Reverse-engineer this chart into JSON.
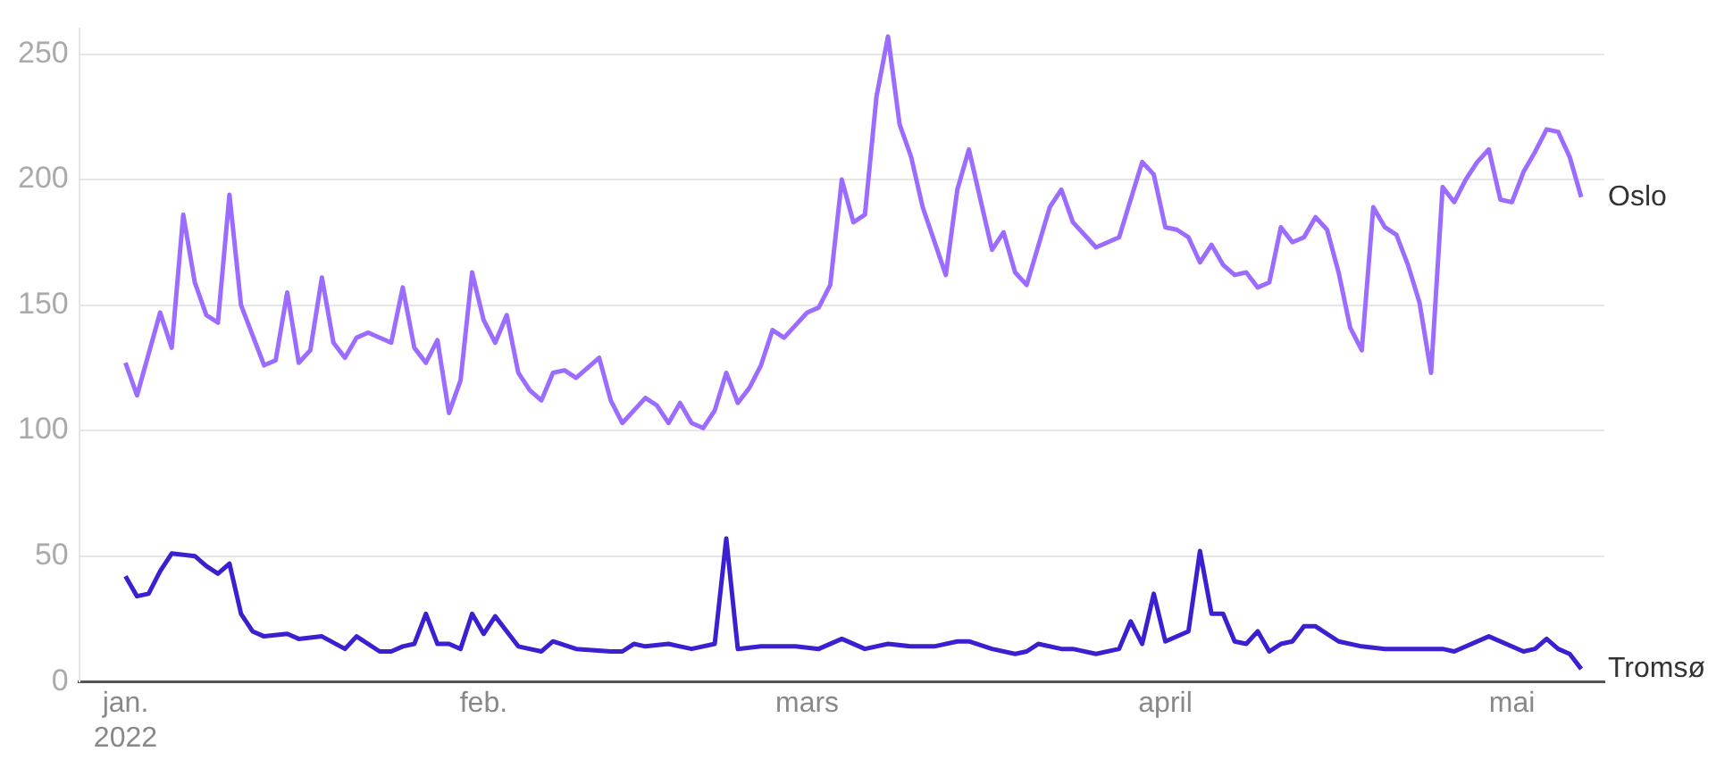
{
  "chart_data": {
    "type": "line",
    "xlim": [
      "2021-12-28",
      "2022-05-09"
    ],
    "xticks": [
      {
        "value": "2022-01-01",
        "label": "jan.\n2022"
      },
      {
        "value": "2022-02-01",
        "label": "feb."
      },
      {
        "value": "2022-03-01",
        "label": "mars"
      },
      {
        "value": "2022-04-01",
        "label": "april"
      },
      {
        "value": "2022-05-01",
        "label": "mai"
      }
    ],
    "ylim": [
      0,
      260
    ],
    "yticks": [
      0,
      50,
      100,
      150,
      200,
      250
    ],
    "grid": "y",
    "legend": false,
    "marker": "none",
    "line_style": "solid",
    "series": [
      {
        "name": "Oslo",
        "color": "#9b6cff",
        "x": [
          "2022-01-01",
          "2022-01-02",
          "2022-01-04",
          "2022-01-05",
          "2022-01-06",
          "2022-01-07",
          "2022-01-08",
          "2022-01-09",
          "2022-01-10",
          "2022-01-11",
          "2022-01-13",
          "2022-01-14",
          "2022-01-15",
          "2022-01-16",
          "2022-01-17",
          "2022-01-18",
          "2022-01-19",
          "2022-01-20",
          "2022-01-21",
          "2022-01-22",
          "2022-01-24",
          "2022-01-25",
          "2022-01-26",
          "2022-01-27",
          "2022-01-28",
          "2022-01-29",
          "2022-01-30",
          "2022-01-31",
          "2022-02-01",
          "2022-02-02",
          "2022-02-03",
          "2022-02-04",
          "2022-02-05",
          "2022-02-06",
          "2022-02-07",
          "2022-02-08",
          "2022-02-09",
          "2022-02-11",
          "2022-02-12",
          "2022-02-13",
          "2022-02-15",
          "2022-02-16",
          "2022-02-17",
          "2022-02-18",
          "2022-02-19",
          "2022-02-20",
          "2022-02-21",
          "2022-02-22",
          "2022-02-23",
          "2022-02-24",
          "2022-02-25",
          "2022-02-26",
          "2022-02-27",
          "2022-02-28",
          "2022-03-01",
          "2022-03-02",
          "2022-03-03",
          "2022-03-04",
          "2022-03-05",
          "2022-03-06",
          "2022-03-07",
          "2022-03-08",
          "2022-03-09",
          "2022-03-10",
          "2022-03-11",
          "2022-03-13",
          "2022-03-14",
          "2022-03-15",
          "2022-03-17",
          "2022-03-18",
          "2022-03-19",
          "2022-03-20",
          "2022-03-22",
          "2022-03-23",
          "2022-03-24",
          "2022-03-26",
          "2022-03-28",
          "2022-03-30",
          "2022-03-31",
          "2022-04-01",
          "2022-04-02",
          "2022-04-03",
          "2022-04-04",
          "2022-04-05",
          "2022-04-06",
          "2022-04-07",
          "2022-04-08",
          "2022-04-09",
          "2022-04-10",
          "2022-04-11",
          "2022-04-12",
          "2022-04-13",
          "2022-04-14",
          "2022-04-15",
          "2022-04-16",
          "2022-04-17",
          "2022-04-18",
          "2022-04-19",
          "2022-04-20",
          "2022-04-21",
          "2022-04-22",
          "2022-04-23",
          "2022-04-24",
          "2022-04-25",
          "2022-04-26",
          "2022-04-27",
          "2022-04-28",
          "2022-04-29",
          "2022-04-30",
          "2022-05-01",
          "2022-05-02",
          "2022-05-03",
          "2022-05-04",
          "2022-05-05",
          "2022-05-06",
          "2022-05-07"
        ],
        "values": [
          127,
          114,
          147,
          133,
          186,
          159,
          146,
          143,
          194,
          150,
          126,
          128,
          155,
          127,
          132,
          161,
          135,
          129,
          137,
          139,
          135,
          157,
          133,
          127,
          136,
          107,
          120,
          163,
          144,
          135,
          146,
          123,
          116,
          112,
          123,
          124,
          121,
          129,
          112,
          103,
          113,
          110,
          103,
          111,
          103,
          101,
          108,
          123,
          111,
          117,
          126,
          140,
          137,
          142,
          147,
          149,
          158,
          200,
          183,
          186,
          233,
          257,
          222,
          209,
          189,
          162,
          196,
          212,
          172,
          179,
          163,
          158,
          189,
          196,
          183,
          173,
          177,
          207,
          202,
          181,
          180,
          177,
          167,
          174,
          166,
          162,
          163,
          157,
          159,
          181,
          175,
          177,
          185,
          180,
          163,
          141,
          132,
          189,
          181,
          178,
          166,
          151,
          123,
          197,
          191,
          200,
          207,
          212,
          192,
          191,
          203,
          211,
          220,
          219,
          209,
          193
        ]
      },
      {
        "name": "Tromsø",
        "color": "#3d1fd1",
        "x": [
          "2022-01-01",
          "2022-01-02",
          "2022-01-03",
          "2022-01-04",
          "2022-01-05",
          "2022-01-07",
          "2022-01-08",
          "2022-01-09",
          "2022-01-10",
          "2022-01-11",
          "2022-01-12",
          "2022-01-13",
          "2022-01-15",
          "2022-01-16",
          "2022-01-18",
          "2022-01-20",
          "2022-01-21",
          "2022-01-23",
          "2022-01-24",
          "2022-01-25",
          "2022-01-26",
          "2022-01-27",
          "2022-01-28",
          "2022-01-29",
          "2022-01-30",
          "2022-01-31",
          "2022-02-01",
          "2022-02-02",
          "2022-02-03",
          "2022-02-04",
          "2022-02-06",
          "2022-02-07",
          "2022-02-09",
          "2022-02-12",
          "2022-02-13",
          "2022-02-14",
          "2022-02-15",
          "2022-02-17",
          "2022-02-19",
          "2022-02-21",
          "2022-02-22",
          "2022-02-23",
          "2022-02-25",
          "2022-02-28",
          "2022-03-02",
          "2022-03-04",
          "2022-03-06",
          "2022-03-08",
          "2022-03-10",
          "2022-03-12",
          "2022-03-14",
          "2022-03-15",
          "2022-03-17",
          "2022-03-19",
          "2022-03-20",
          "2022-03-21",
          "2022-03-23",
          "2022-03-24",
          "2022-03-26",
          "2022-03-28",
          "2022-03-29",
          "2022-03-30",
          "2022-03-31",
          "2022-04-01",
          "2022-04-03",
          "2022-04-04",
          "2022-04-05",
          "2022-04-06",
          "2022-04-07",
          "2022-04-08",
          "2022-04-09",
          "2022-04-10",
          "2022-04-11",
          "2022-04-12",
          "2022-04-13",
          "2022-04-14",
          "2022-04-16",
          "2022-04-18",
          "2022-04-20",
          "2022-04-25",
          "2022-04-26",
          "2022-04-29",
          "2022-05-02",
          "2022-05-03",
          "2022-05-04",
          "2022-05-05",
          "2022-05-06",
          "2022-05-07"
        ],
        "values": [
          42,
          34,
          35,
          44,
          51,
          50,
          46,
          43,
          47,
          27,
          20,
          18,
          19,
          17,
          18,
          13,
          18,
          12,
          12,
          14,
          15,
          27,
          15,
          15,
          13,
          27,
          19,
          26,
          20,
          14,
          12,
          16,
          13,
          12,
          12,
          15,
          14,
          15,
          13,
          15,
          57,
          13,
          14,
          14,
          13,
          17,
          13,
          15,
          14,
          14,
          16,
          16,
          13,
          11,
          12,
          15,
          13,
          13,
          11,
          13,
          24,
          15,
          35,
          16,
          20,
          52,
          27,
          27,
          16,
          15,
          20,
          12,
          15,
          16,
          22,
          22,
          16,
          14,
          13,
          13,
          12,
          18,
          12,
          13,
          17,
          13,
          11,
          5
        ]
      }
    ]
  }
}
